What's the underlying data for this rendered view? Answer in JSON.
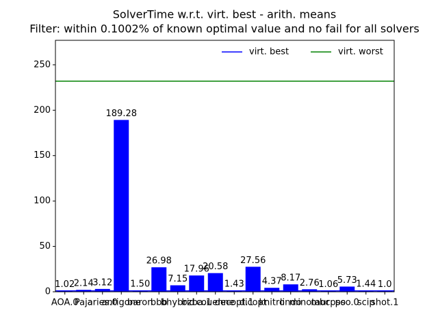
{
  "chart_data": {
    "type": "bar",
    "title": "SolverTime w.r.t. virt. best - arith. means",
    "subtitle": "Filter: within 0.1002% of known optimal value and no fail for all solvers",
    "categories": [
      "AOA.0",
      "Paja",
      "aries.0",
      "antigone",
      "baron",
      "bbb",
      "bhybrid",
      "bzba.1",
      "couenne",
      "decopt.1",
      "dicopt",
      "knitro",
      "lindo",
      "minotaur",
      "mbcpso",
      "pso.0",
      "scip",
      "shot.1"
    ],
    "values": [
      1.02,
      2.14,
      3.12,
      189.28,
      1.5,
      26.98,
      7.15,
      17.96,
      20.58,
      1.43,
      27.56,
      4.37,
      8.17,
      2.76,
      1.06,
      5.73,
      1.44,
      1.0
    ],
    "value_labels": [
      "1.02",
      "2.14",
      "3.12",
      "189.28",
      "1.50",
      "26.98",
      "7.15",
      "17.96",
      "20.58",
      "1.43",
      "27.56",
      "4.37",
      "8.17",
      "2.76",
      "1.06",
      "5.73",
      "1.44",
      "1.0"
    ],
    "color": "#0000ff",
    "lines": [
      {
        "name": "virt. best",
        "color": "#0000ff",
        "value": 1
      },
      {
        "name": "virt. worst",
        "color": "#008000",
        "value": 232
      }
    ],
    "legend": "upper right",
    "ylim": [
      0,
      277
    ],
    "yticks": [
      0,
      50,
      100,
      150,
      200,
      250
    ]
  }
}
